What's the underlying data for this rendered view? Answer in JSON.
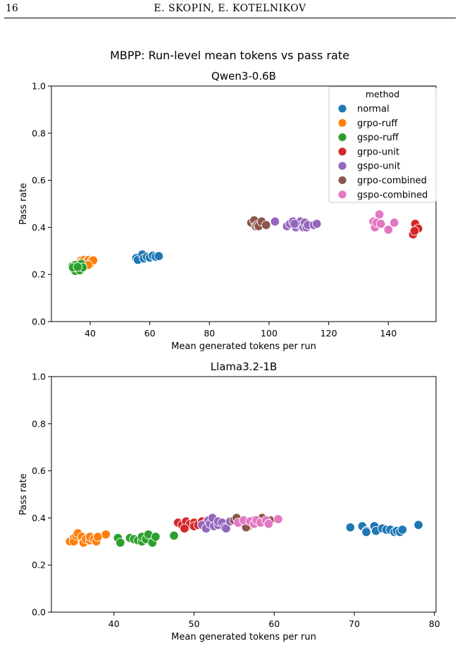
{
  "header": {
    "page_number": "16",
    "authors": "E. SKOPIN, E. KOTELNIKOV"
  },
  "figure": {
    "suptitle": "MBPP: Run-level mean tokens vs pass rate",
    "legend_title": "method",
    "methods": [
      {
        "name": "normal",
        "color": "#1f77b4"
      },
      {
        "name": "grpo-ruff",
        "color": "#ff7f0e"
      },
      {
        "name": "gspo-ruff",
        "color": "#2ca02c"
      },
      {
        "name": "grpo-unit",
        "color": "#d62728"
      },
      {
        "name": "gspo-unit",
        "color": "#9467bd"
      },
      {
        "name": "grpo-combined",
        "color": "#8c564b"
      },
      {
        "name": "gspo-combined",
        "color": "#e377c2"
      }
    ]
  },
  "chart_data": [
    {
      "type": "scatter",
      "title": "Qwen3-0.6B",
      "xlabel": "Mean generated tokens per run",
      "ylabel": "Pass rate",
      "xlim": [
        27,
        156
      ],
      "ylim": [
        0,
        1
      ],
      "xticks": [
        40,
        60,
        80,
        100,
        120,
        140
      ],
      "yticks": [
        0.0,
        0.2,
        0.4,
        0.6,
        0.8,
        1.0
      ],
      "legend": "top-right",
      "grid": false,
      "series": [
        {
          "name": "normal",
          "points": [
            [
              55.5,
              0.27
            ],
            [
              56,
              0.262
            ],
            [
              57.5,
              0.285
            ],
            [
              58,
              0.268
            ],
            [
              59,
              0.275
            ],
            [
              60,
              0.272
            ],
            [
              61,
              0.28
            ],
            [
              62,
              0.275
            ],
            [
              63,
              0.278
            ]
          ]
        },
        {
          "name": "grpo-ruff",
          "points": [
            [
              37,
              0.26
            ],
            [
              37.5,
              0.255
            ],
            [
              38,
              0.262
            ],
            [
              38.5,
              0.25
            ],
            [
              39,
              0.258
            ],
            [
              39.5,
              0.262
            ],
            [
              40,
              0.245
            ],
            [
              40.5,
              0.258
            ],
            [
              41,
              0.26
            ],
            [
              36,
              0.245
            ],
            [
              39.3,
              0.24
            ]
          ]
        },
        {
          "name": "gspo-ruff",
          "points": [
            [
              34,
              0.235
            ],
            [
              34.5,
              0.225
            ],
            [
              35,
              0.24
            ],
            [
              35,
              0.215
            ],
            [
              35.5,
              0.23
            ],
            [
              36,
              0.225
            ],
            [
              36.5,
              0.218
            ],
            [
              36.5,
              0.235
            ],
            [
              37,
              0.245
            ],
            [
              37.5,
              0.23
            ],
            [
              34.2,
              0.23
            ],
            [
              35.8,
              0.232
            ]
          ]
        },
        {
          "name": "grpo-unit",
          "points": [
            [
              148.5,
              0.38
            ],
            [
              149,
              0.415
            ],
            [
              149.5,
              0.39
            ],
            [
              150,
              0.395
            ],
            [
              148.3,
              0.37
            ],
            [
              148.8,
              0.385
            ]
          ]
        },
        {
          "name": "gspo-unit",
          "points": [
            [
              102,
              0.425
            ],
            [
              106,
              0.405
            ],
            [
              107,
              0.415
            ],
            [
              108,
              0.425
            ],
            [
              109,
              0.4
            ],
            [
              110,
              0.41
            ],
            [
              110.5,
              0.425
            ],
            [
              111,
              0.41
            ],
            [
              111.5,
              0.4
            ],
            [
              112,
              0.42
            ],
            [
              112.5,
              0.4
            ],
            [
              113,
              0.41
            ],
            [
              115,
              0.41
            ],
            [
              116,
              0.415
            ],
            [
              108.5,
              0.415
            ]
          ]
        },
        {
          "name": "grpo-combined",
          "points": [
            [
              94,
              0.42
            ],
            [
              95,
              0.43
            ],
            [
              95.5,
              0.405
            ],
            [
              96,
              0.41
            ],
            [
              96.5,
              0.405
            ],
            [
              97.5,
              0.425
            ],
            [
              99,
              0.41
            ]
          ]
        },
        {
          "name": "gspo-combined",
          "points": [
            [
              135,
              0.425
            ],
            [
              135.5,
              0.4
            ],
            [
              136,
              0.42
            ],
            [
              137,
              0.455
            ],
            [
              137.5,
              0.415
            ],
            [
              140,
              0.39
            ],
            [
              142,
              0.42
            ]
          ]
        }
      ]
    },
    {
      "type": "scatter",
      "title": "Llama3.2-1B",
      "xlabel": "Mean generated tokens per run",
      "ylabel": "Pass rate",
      "xlim": [
        32.2,
        80.2
      ],
      "ylim": [
        0,
        1
      ],
      "xticks": [
        40,
        50,
        60,
        70,
        80
      ],
      "yticks": [
        0.0,
        0.2,
        0.4,
        0.6,
        0.8,
        1.0
      ],
      "grid": false,
      "series": [
        {
          "name": "normal",
          "points": [
            [
              69.5,
              0.36
            ],
            [
              71,
              0.365
            ],
            [
              71.5,
              0.345
            ],
            [
              71.5,
              0.34
            ],
            [
              72.5,
              0.365
            ],
            [
              72.7,
              0.345
            ],
            [
              73.5,
              0.355
            ],
            [
              74,
              0.35
            ],
            [
              74.5,
              0.35
            ],
            [
              75,
              0.34
            ],
            [
              75.3,
              0.345
            ],
            [
              75.7,
              0.34
            ],
            [
              76,
              0.35
            ],
            [
              78,
              0.37
            ]
          ]
        },
        {
          "name": "grpo-ruff",
          "points": [
            [
              34.5,
              0.3
            ],
            [
              35,
              0.315
            ],
            [
              35,
              0.3
            ],
            [
              35.3,
              0.325
            ],
            [
              35.5,
              0.335
            ],
            [
              36,
              0.32
            ],
            [
              36.2,
              0.295
            ],
            [
              36.5,
              0.31
            ],
            [
              37,
              0.305
            ],
            [
              37,
              0.32
            ],
            [
              37.5,
              0.31
            ],
            [
              37.8,
              0.3
            ],
            [
              38,
              0.32
            ],
            [
              39,
              0.33
            ]
          ]
        },
        {
          "name": "gspo-ruff",
          "points": [
            [
              40.5,
              0.315
            ],
            [
              40.8,
              0.295
            ],
            [
              42,
              0.315
            ],
            [
              42.5,
              0.31
            ],
            [
              43,
              0.305
            ],
            [
              43.5,
              0.3
            ],
            [
              43.5,
              0.32
            ],
            [
              44,
              0.31
            ],
            [
              44.3,
              0.33
            ],
            [
              44.8,
              0.295
            ],
            [
              45.2,
              0.32
            ],
            [
              47.5,
              0.325
            ]
          ]
        },
        {
          "name": "grpo-unit",
          "points": [
            [
              48,
              0.38
            ],
            [
              48.5,
              0.37
            ],
            [
              49,
              0.36
            ],
            [
              49,
              0.385
            ],
            [
              49.5,
              0.375
            ],
            [
              50,
              0.38
            ],
            [
              50,
              0.365
            ],
            [
              50.5,
              0.37
            ],
            [
              51,
              0.385
            ],
            [
              51.5,
              0.38
            ],
            [
              48.8,
              0.355
            ]
          ]
        },
        {
          "name": "gspo-unit",
          "points": [
            [
              51,
              0.37
            ],
            [
              51.5,
              0.355
            ],
            [
              51.8,
              0.39
            ],
            [
              52,
              0.375
            ],
            [
              52.3,
              0.4
            ],
            [
              52.5,
              0.365
            ],
            [
              53,
              0.37
            ],
            [
              53,
              0.385
            ],
            [
              53.5,
              0.38
            ],
            [
              53.8,
              0.36
            ],
            [
              54,
              0.355
            ],
            [
              54.5,
              0.385
            ]
          ]
        },
        {
          "name": "grpo-combined",
          "points": [
            [
              55,
              0.39
            ],
            [
              55.3,
              0.4
            ],
            [
              56,
              0.38
            ],
            [
              56.5,
              0.385
            ],
            [
              56.8,
              0.365
            ],
            [
              57,
              0.375
            ],
            [
              57.5,
              0.39
            ],
            [
              58,
              0.385
            ],
            [
              58.5,
              0.4
            ],
            [
              59.5,
              0.39
            ],
            [
              56.5,
              0.36
            ]
          ]
        },
        {
          "name": "gspo-combined",
          "points": [
            [
              55.5,
              0.38
            ],
            [
              56.2,
              0.39
            ],
            [
              57,
              0.385
            ],
            [
              57.5,
              0.375
            ],
            [
              57.8,
              0.39
            ],
            [
              58.3,
              0.38
            ],
            [
              59,
              0.39
            ],
            [
              59.3,
              0.375
            ],
            [
              60.5,
              0.395
            ]
          ]
        }
      ]
    }
  ]
}
